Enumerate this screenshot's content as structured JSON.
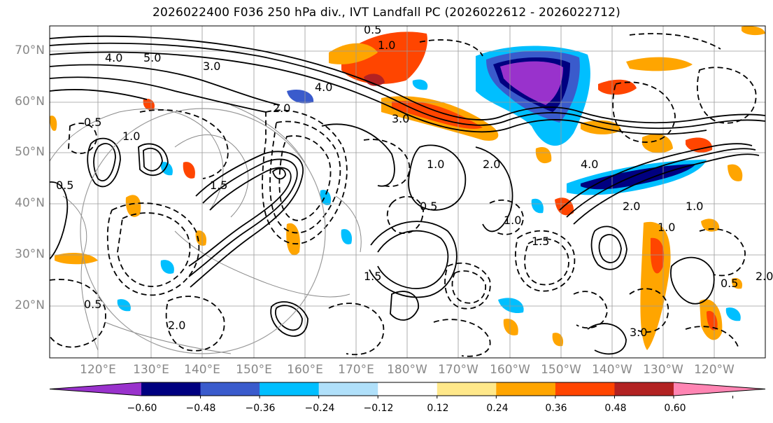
{
  "title": "2026022400 F036 250 hPa div., IVT Landfall PC (2026022612 - 2026022712)",
  "lat_labels": [
    "70°N",
    "60°N",
    "50°N",
    "40°N",
    "30°N",
    "20°N"
  ],
  "lon_labels": [
    "120°E",
    "130°E",
    "140°E",
    "150°E",
    "160°E",
    "170°E",
    "180°W",
    "170°W",
    "160°W",
    "150°W",
    "140°W",
    "130°W",
    "120°W"
  ],
  "colorbar": {
    "colors": [
      "#9932cc",
      "#000080",
      "#3a5bcc",
      "#00bfff",
      "#b0e0fa",
      "#ffffff",
      "#ffe88a",
      "#ffa500",
      "#ff4500",
      "#b22222",
      "#ff85b3"
    ],
    "tick_labels": [
      "−0.60",
      "−0.48",
      "−0.36",
      "−0.24",
      "−0.12",
      "0.12",
      "0.24",
      "0.36",
      "0.48",
      "0.60"
    ]
  },
  "contour_labels": [
    "4.0",
    "5.0",
    "3.0",
    "0.5",
    "1.0",
    "1.5",
    "2.0",
    "4.0",
    "3.0",
    "0.5",
    "1.0",
    "1.5",
    "2.0",
    "0.5",
    "1.0",
    "2.0",
    "1.0",
    "0.5",
    "2.0",
    "1.5",
    "0.5",
    "4.0",
    "1.0",
    "3.0",
    "0.5",
    "1.0",
    "2.0"
  ]
}
